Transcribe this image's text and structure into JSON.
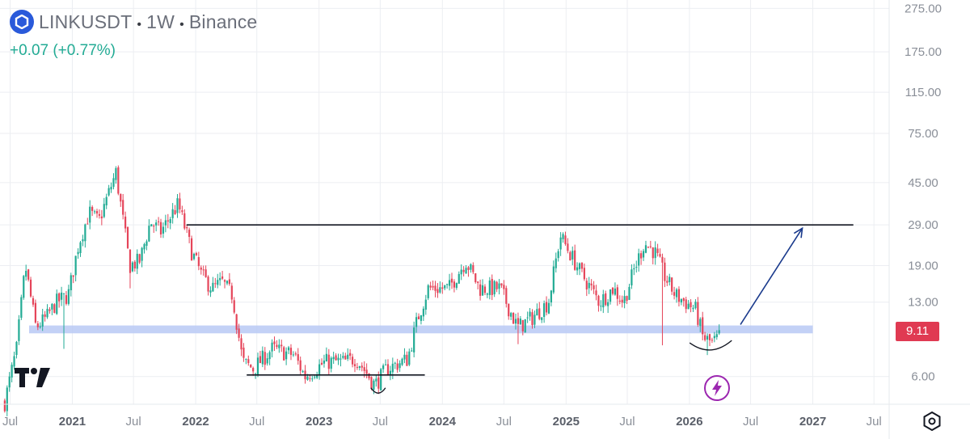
{
  "header": {
    "symbol": "LINKUSDT",
    "interval": "1W",
    "exchange": "Binance",
    "change": "+0.07 (+0.77%)",
    "symbol_icon": "chainlink-hexagon-icon"
  },
  "price_tag": "9.11",
  "colors": {
    "up": "#22ab94",
    "down": "#e5455a",
    "support_zone": "#b8c9f5",
    "price_tag": "#e03a52",
    "arrow": "#1a3a8c",
    "grid": "#eceef2",
    "axis_text": "#8a8f98"
  },
  "chart_data": {
    "type": "candlestick",
    "scale": "log",
    "ylim": [
      4.5,
      300
    ],
    "y_ticks": [
      6,
      13,
      19,
      29,
      45,
      75,
      115,
      175,
      275
    ],
    "y_tick_labels": [
      "6.00",
      "13.00",
      "19.00",
      "29.00",
      "45.00",
      "75.00",
      "115.00",
      "175.00",
      "275.00"
    ],
    "x_range": [
      "2020-06-01",
      "2027-08-15"
    ],
    "x_ticks": [
      {
        "date": "2020-07-01",
        "label": "Jul"
      },
      {
        "date": "2021-01-01",
        "label": "2021"
      },
      {
        "date": "2021-07-01",
        "label": "Jul"
      },
      {
        "date": "2022-01-01",
        "label": "2022"
      },
      {
        "date": "2022-07-01",
        "label": "Jul"
      },
      {
        "date": "2023-01-01",
        "label": "2023"
      },
      {
        "date": "2023-07-01",
        "label": "Jul"
      },
      {
        "date": "2024-01-01",
        "label": "2024"
      },
      {
        "date": "2024-07-01",
        "label": "Jul"
      },
      {
        "date": "2025-01-01",
        "label": "2025"
      },
      {
        "date": "2025-07-01",
        "label": "Jul"
      },
      {
        "date": "2026-01-01",
        "label": "2026"
      },
      {
        "date": "2026-07-01",
        "label": "Jul"
      },
      {
        "date": "2027-01-01",
        "label": "2027"
      },
      {
        "date": "2027-07-01",
        "label": "Jul"
      }
    ],
    "x_tick_bold": [
      "2021",
      "2022",
      "2023",
      "2024",
      "2025",
      "2026",
      "2027"
    ],
    "grid": true,
    "price_path": [
      [
        "2020-06-15",
        4.6
      ],
      [
        "2020-07-20",
        8.0
      ],
      [
        "2020-08-15",
        19.0
      ],
      [
        "2020-09-15",
        10.0
      ],
      [
        "2020-10-15",
        11.0
      ],
      [
        "2020-11-15",
        13.0
      ],
      [
        "2020-12-20",
        14.0
      ],
      [
        "2021-01-20",
        24.0
      ],
      [
        "2021-02-20",
        33.0
      ],
      [
        "2021-03-20",
        30.0
      ],
      [
        "2021-05-10",
        50.0
      ],
      [
        "2021-06-20",
        19.0
      ],
      [
        "2021-07-20",
        20.0
      ],
      [
        "2021-08-20",
        30.0
      ],
      [
        "2021-09-20",
        27.0
      ],
      [
        "2021-11-10",
        36.0
      ],
      [
        "2021-12-20",
        22.0
      ],
      [
        "2022-01-20",
        17.0
      ],
      [
        "2022-02-20",
        15.0
      ],
      [
        "2022-03-20",
        16.0
      ],
      [
        "2022-04-20",
        14.0
      ],
      [
        "2022-05-20",
        7.0
      ],
      [
        "2022-06-20",
        6.5
      ],
      [
        "2022-08-15",
        8.0
      ],
      [
        "2022-10-20",
        7.5
      ],
      [
        "2022-11-20",
        6.0
      ],
      [
        "2023-01-20",
        7.0
      ],
      [
        "2023-03-20",
        7.0
      ],
      [
        "2023-04-20",
        7.3
      ],
      [
        "2023-06-15",
        5.5
      ],
      [
        "2023-07-20",
        6.5
      ],
      [
        "2023-09-20",
        7.2
      ],
      [
        "2023-10-20",
        11.0
      ],
      [
        "2023-11-20",
        15.0
      ],
      [
        "2024-01-20",
        15.0
      ],
      [
        "2024-03-10",
        20.0
      ],
      [
        "2024-04-20",
        15.0
      ],
      [
        "2024-06-20",
        15.0
      ],
      [
        "2024-08-10",
        10.0
      ],
      [
        "2024-09-20",
        11.0
      ],
      [
        "2024-11-10",
        13.0
      ],
      [
        "2024-12-15",
        26.0
      ],
      [
        "2025-02-10",
        18.0
      ],
      [
        "2025-04-10",
        13.0
      ],
      [
        "2025-05-20",
        15.0
      ],
      [
        "2025-06-20",
        13.0
      ],
      [
        "2025-07-20",
        18.0
      ],
      [
        "2025-08-20",
        24.0
      ],
      [
        "2025-09-20",
        22.0
      ],
      [
        "2025-10-20",
        17.0
      ],
      [
        "2025-11-20",
        14.0
      ],
      [
        "2025-12-20",
        13.0
      ],
      [
        "2026-01-20",
        12.0
      ],
      [
        "2026-02-10",
        9.0
      ],
      [
        "2026-03-10",
        8.5
      ],
      [
        "2026-04-01",
        9.11
      ]
    ],
    "spike_lows": [
      [
        "2020-12-10",
        8.0
      ],
      [
        "2021-06-20",
        15.0
      ],
      [
        "2023-06-15",
        5.0
      ],
      [
        "2024-08-10",
        8.4
      ],
      [
        "2025-10-10",
        8.3
      ],
      [
        "2026-02-20",
        7.5
      ]
    ],
    "annotations": {
      "resistance_line": {
        "start": "2021-12-05",
        "end": "2027-05-01",
        "price": 29
      },
      "support_zone": {
        "start": "2020-06-01",
        "end": "2027-01-01",
        "low": 9.4,
        "high": 10.2
      },
      "bottom_line": {
        "start": "2022-06-01",
        "end": "2023-11-10",
        "price": 6.1
      },
      "curve_2023": {
        "date": "2023-06-25",
        "price": 5.2
      },
      "curve_2026": {
        "date": "2026-03-05",
        "price": 8.3
      },
      "arrow": {
        "start_date": "2026-06-01",
        "start_price": 10.3,
        "end_date": "2026-12-01",
        "end_price": 28
      }
    }
  }
}
